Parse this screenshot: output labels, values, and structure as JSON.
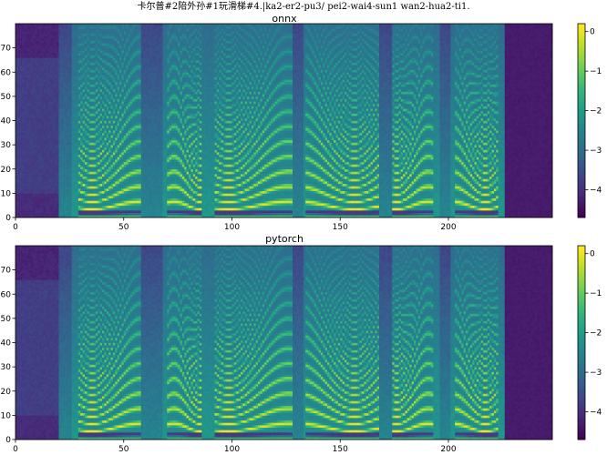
{
  "figure": {
    "suptitle": "卡尔普#2陪外孙#1玩滑梯#4.|ka2-er2-pu3/ pei2-wai4-sun1 wan2-hua2-ti1."
  },
  "chart_data": [
    {
      "type": "heatmap",
      "title": "onnx",
      "xlabel": "",
      "ylabel": "",
      "xlim": [
        0,
        248
      ],
      "ylim": [
        0,
        80
      ],
      "xticks": [
        0,
        50,
        100,
        150,
        200
      ],
      "yticks": [
        0,
        10,
        20,
        30,
        40,
        50,
        60,
        70
      ],
      "colorbar": {
        "range": [
          -4.7,
          0.2
        ],
        "ticks": [
          0,
          -1,
          -2,
          -3,
          -4
        ],
        "colormap": "viridis"
      },
      "frames": 248,
      "mel_bins": 80,
      "voiced_segments": [
        [
          29,
          58
        ],
        [
          70,
          86
        ],
        [
          92,
          128
        ],
        [
          134,
          168
        ],
        [
          174,
          193
        ],
        [
          203,
          223
        ]
      ],
      "pauses": [
        [
          20,
          26
        ],
        [
          58,
          68
        ],
        [
          128,
          133
        ],
        [
          168,
          174
        ],
        [
          196,
          201
        ]
      ],
      "silence_end_from": 226
    },
    {
      "type": "heatmap",
      "title": "pytorch",
      "xlabel": "",
      "ylabel": "",
      "xlim": [
        0,
        248
      ],
      "ylim": [
        0,
        80
      ],
      "xticks": [
        0,
        50,
        100,
        150,
        200
      ],
      "yticks": [
        0,
        10,
        20,
        30,
        40,
        50,
        60,
        70
      ],
      "colorbar": {
        "range": [
          -4.7,
          0.2
        ],
        "ticks": [
          0,
          -1,
          -2,
          -3,
          -4
        ],
        "colormap": "viridis"
      },
      "frames": 248,
      "mel_bins": 80,
      "voiced_segments": [
        [
          29,
          58
        ],
        [
          70,
          86
        ],
        [
          92,
          128
        ],
        [
          134,
          168
        ],
        [
          174,
          193
        ],
        [
          203,
          223
        ]
      ],
      "pauses": [
        [
          20,
          26
        ],
        [
          58,
          68
        ],
        [
          128,
          133
        ],
        [
          168,
          174
        ],
        [
          196,
          201
        ]
      ],
      "silence_end_from": 226
    }
  ]
}
